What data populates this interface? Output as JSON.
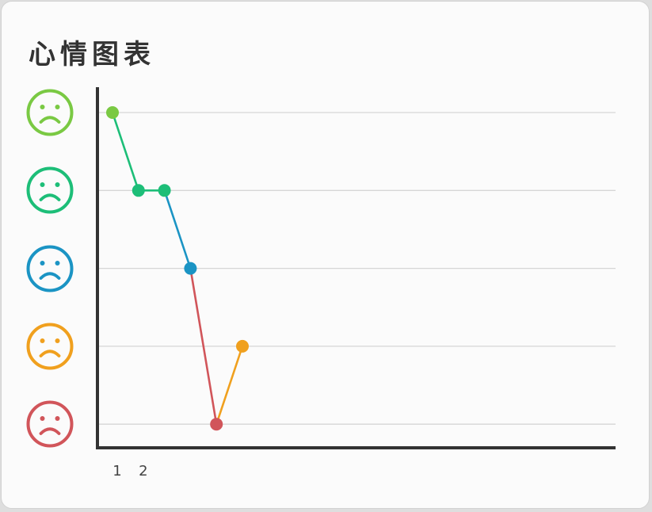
{
  "card": {
    "title": "心情图表"
  },
  "chart_data": {
    "type": "line",
    "title": "心情图表",
    "xlabel": "",
    "ylabel": "",
    "x_tick_labels": [
      "1",
      "2"
    ],
    "y_levels": [
      {
        "level": 5,
        "icon": "sad-face-icon",
        "color": "#7ac943"
      },
      {
        "level": 4,
        "icon": "sad-face-icon",
        "color": "#1dbe78"
      },
      {
        "level": 3,
        "icon": "sad-face-icon",
        "color": "#1b94c4"
      },
      {
        "level": 2,
        "icon": "sad-face-icon",
        "color": "#f0a01e"
      },
      {
        "level": 1,
        "icon": "sad-face-icon",
        "color": "#d1555a"
      }
    ],
    "ylim": [
      1,
      5
    ],
    "grid": true,
    "series": [
      {
        "x": [
          1,
          2,
          3,
          4,
          5,
          6
        ],
        "values": [
          5,
          4,
          4,
          3,
          1,
          2
        ]
      }
    ]
  }
}
